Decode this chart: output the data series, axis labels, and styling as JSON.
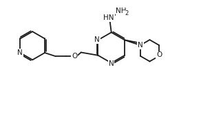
{
  "bg_color": "#ffffff",
  "line_color": "#1a1a1a",
  "line_width": 1.3,
  "font_size": 7.5,
  "figsize": [
    2.92,
    1.65
  ],
  "dpi": 100,
  "xlim": [
    0,
    10
  ],
  "ylim": [
    0,
    5.5
  ]
}
